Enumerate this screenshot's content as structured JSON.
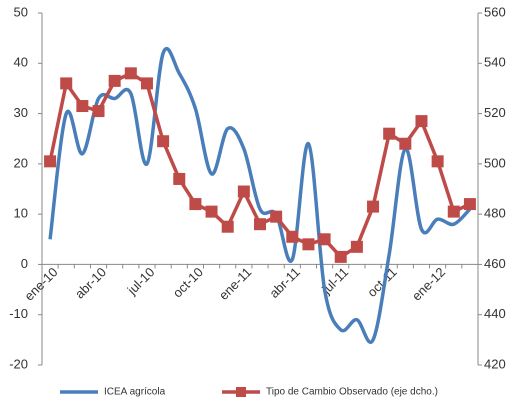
{
  "chart_data": {
    "type": "line",
    "categories": [
      "ene-10",
      null,
      null,
      "abr-10",
      null,
      null,
      "jul-10",
      null,
      null,
      "oct-10",
      null,
      null,
      "ene-11",
      null,
      null,
      "abr-11",
      null,
      null,
      "jul-11",
      null,
      null,
      "oct-11",
      null,
      null,
      "ene-12",
      null,
      null
    ],
    "series": [
      {
        "name": "ICEA agrícola",
        "color": "#4a7ebb",
        "values": [
          5,
          30,
          22,
          33,
          33,
          34,
          20,
          42,
          38,
          31,
          18,
          27,
          23,
          11,
          10,
          1,
          24,
          -5,
          -13,
          -11,
          -15,
          2,
          23,
          7,
          9,
          8,
          11
        ]
      },
      {
        "name": "Tipo de Cambio Observado (eje dcho.)",
        "color": "#be4b48",
        "axis": "y2",
        "values": [
          501,
          532,
          523,
          521,
          533,
          536,
          532,
          509,
          494,
          484,
          481,
          475,
          489,
          476,
          479,
          471,
          468,
          470,
          463,
          467,
          483,
          512,
          508,
          517,
          501,
          481,
          484
        ]
      }
    ],
    "ylim": [
      -20,
      50
    ],
    "yticks": [
      -20,
      -10,
      0,
      10,
      20,
      30,
      40,
      50
    ],
    "y2lim": [
      420,
      560
    ],
    "y2ticks": [
      420,
      440,
      460,
      480,
      500,
      520,
      540,
      560
    ],
    "grid": false
  }
}
